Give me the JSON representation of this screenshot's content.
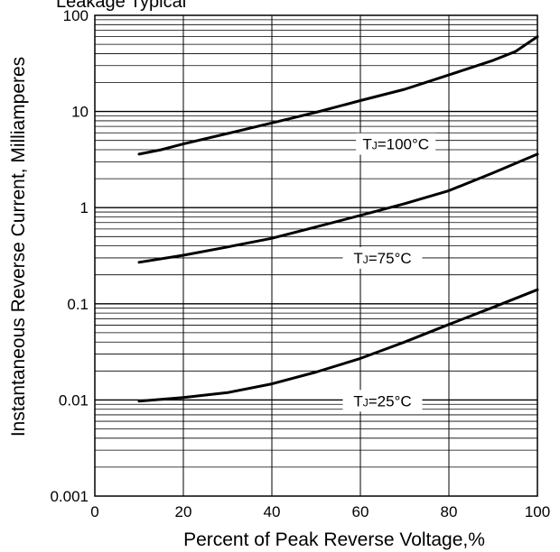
{
  "title_fragment": "Leakage Typical",
  "chart_data": {
    "type": "line",
    "title": "",
    "xlabel": "Percent of Peak Reverse Voltage,%",
    "ylabel": "Instantaneous Reverse Current, Milliamperes",
    "xlim": [
      0,
      100
    ],
    "ylim": [
      0.001,
      100
    ],
    "yscale": "log",
    "grid": true,
    "xticks": [
      "0",
      "20",
      "40",
      "60",
      "80",
      "100"
    ],
    "yticks": [
      "0.001",
      "0.01",
      "0.1",
      "1",
      "10",
      "100"
    ],
    "series": [
      {
        "name": "TJ=100°C",
        "label_parts": [
          "T",
          "J",
          "=100°C"
        ],
        "label_at": [
          68,
          4.6
        ],
        "x": [
          10,
          15,
          20,
          30,
          40,
          50,
          60,
          70,
          80,
          90,
          95,
          100
        ],
        "y": [
          3.6,
          4.0,
          4.6,
          5.9,
          7.6,
          9.8,
          13,
          17,
          24,
          34,
          42,
          60
        ]
      },
      {
        "name": "TJ=75°C",
        "label_parts": [
          "T",
          "J",
          "=75°C"
        ],
        "label_at": [
          65,
          0.3
        ],
        "x": [
          10,
          20,
          30,
          40,
          50,
          60,
          70,
          80,
          90,
          100
        ],
        "y": [
          0.27,
          0.32,
          0.39,
          0.48,
          0.63,
          0.83,
          1.1,
          1.5,
          2.3,
          3.6
        ]
      },
      {
        "name": "TJ=25°C",
        "label_parts": [
          "T",
          "J",
          "=25°C"
        ],
        "label_at": [
          65,
          0.0098
        ],
        "x": [
          10,
          20,
          30,
          40,
          50,
          60,
          70,
          80,
          90,
          100
        ],
        "y": [
          0.0097,
          0.0106,
          0.0119,
          0.0147,
          0.0195,
          0.027,
          0.04,
          0.061,
          0.092,
          0.14
        ]
      }
    ]
  }
}
